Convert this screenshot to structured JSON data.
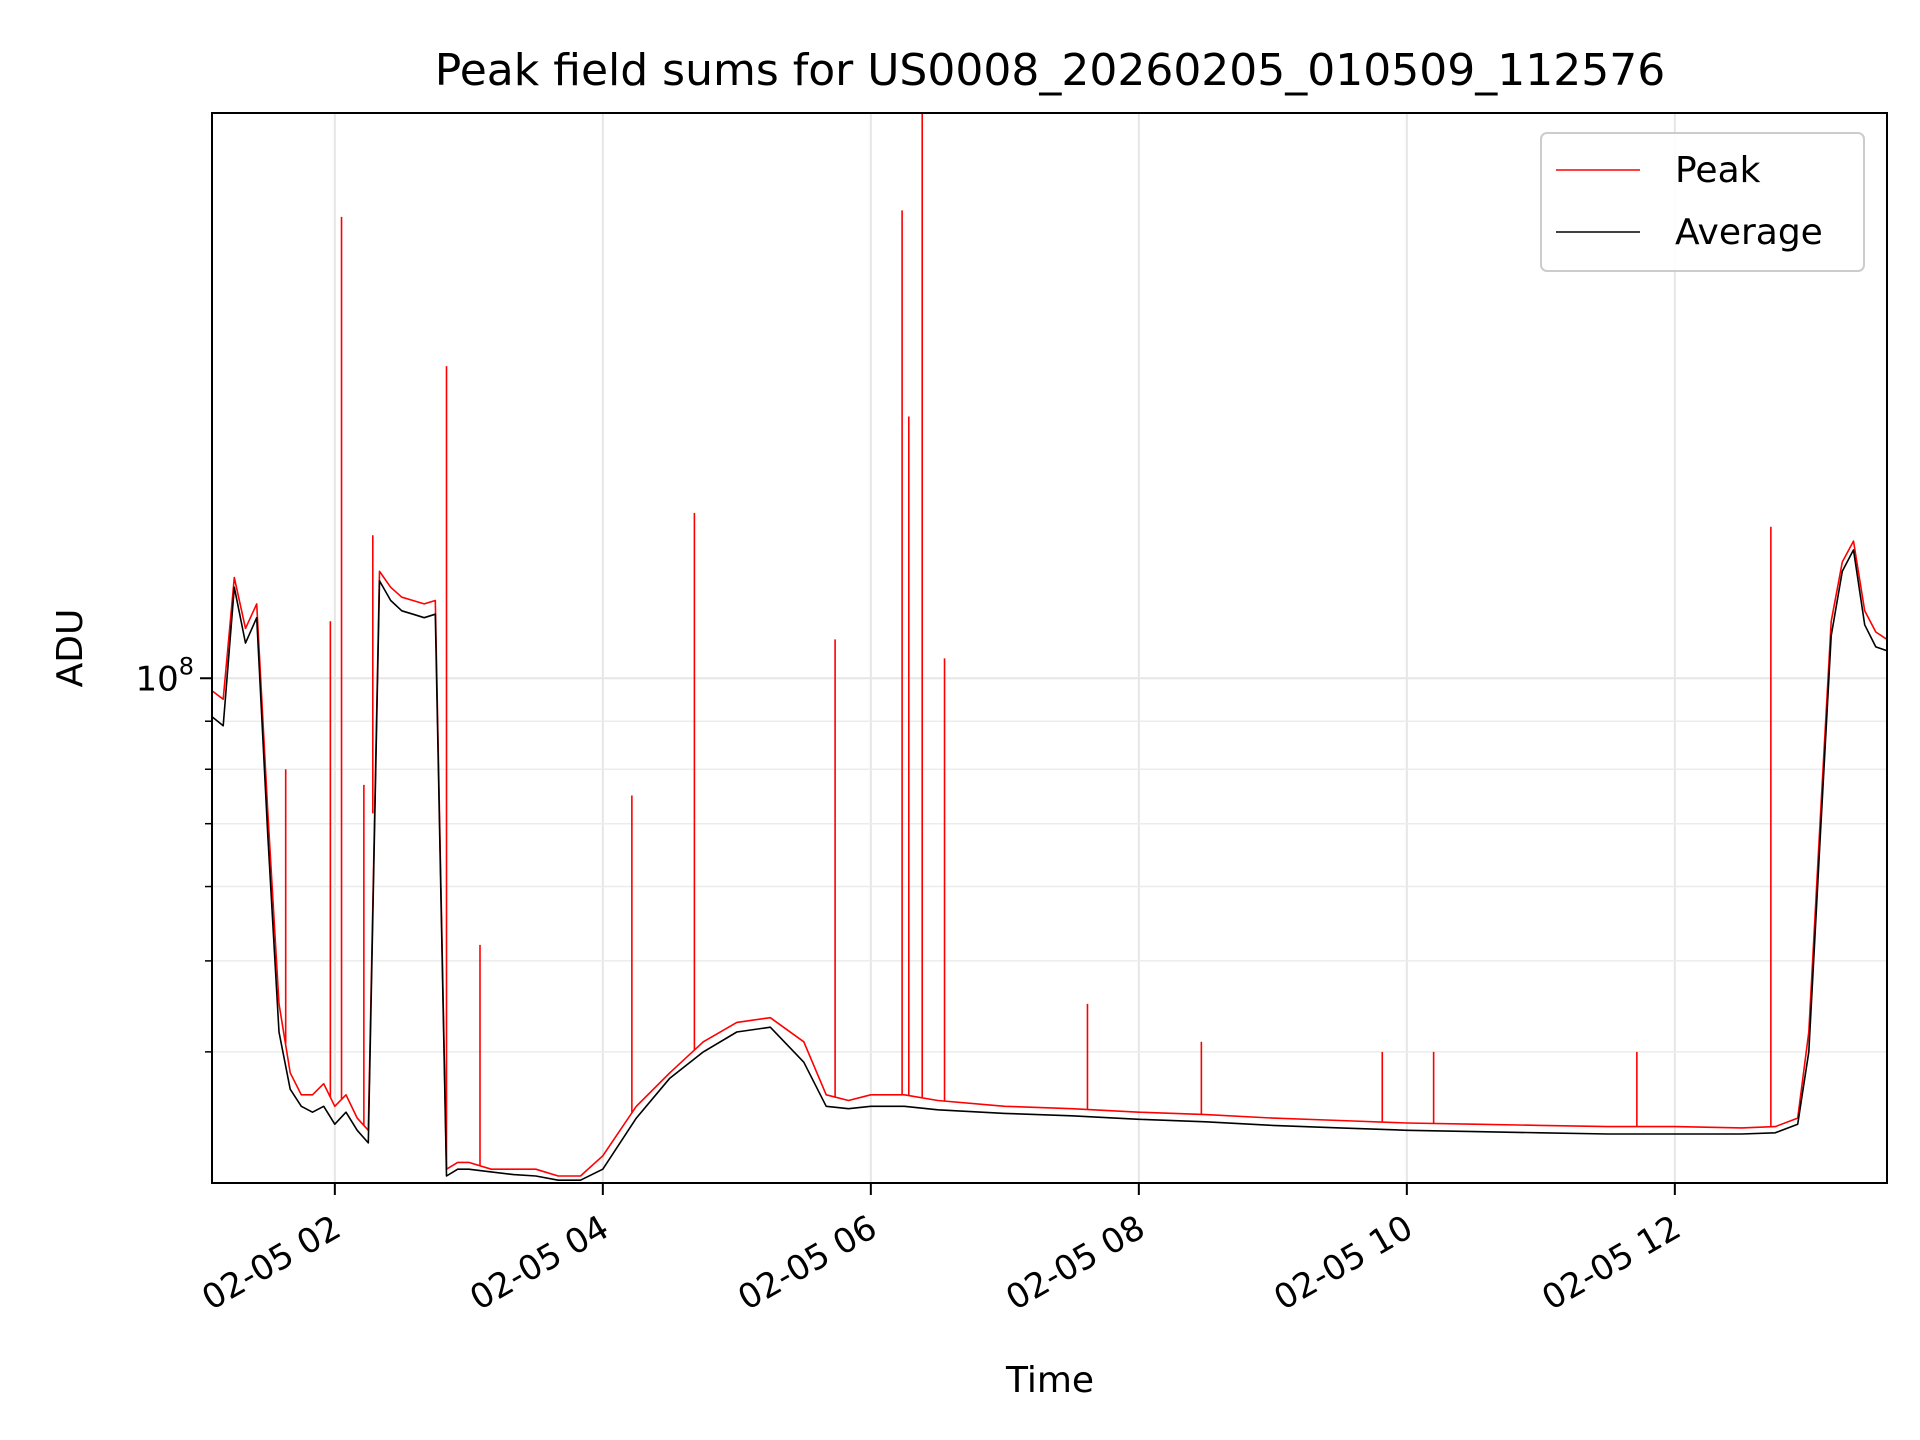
{
  "chart_data": {
    "type": "line",
    "title": "Peak field sums for US0008_20260205_010509_112576",
    "xlabel": "Time",
    "ylabel": "ADU",
    "y_scale": "log",
    "grid": true,
    "legend_position": "top-right",
    "xlim": [
      "2026-02-05 01:05",
      "2026-02-05 13:35"
    ],
    "ylim": [
      29000000,
      400000000
    ],
    "x_ticks": [
      "02-05 02",
      "02-05 04",
      "02-05 06",
      "02-05 08",
      "02-05 10",
      "02-05 12"
    ],
    "x_tick_values": [
      "2026-02-05 02:00",
      "2026-02-05 04:00",
      "2026-02-05 06:00",
      "2026-02-05 08:00",
      "2026-02-05 10:00",
      "2026-02-05 12:00"
    ],
    "y_major_tick_label": "10^8",
    "y_major_tick_value": 100000000,
    "y_minor_ticks": [
      40000000,
      50000000,
      60000000,
      70000000,
      80000000,
      90000000
    ],
    "colors": {
      "peak": "#ff0000",
      "average": "#000000"
    },
    "x": [
      "2026-02-05 01:05",
      "2026-02-05 01:10",
      "2026-02-05 01:15",
      "2026-02-05 01:20",
      "2026-02-05 01:25",
      "2026-02-05 01:30",
      "2026-02-05 01:35",
      "2026-02-05 01:40",
      "2026-02-05 01:45",
      "2026-02-05 01:50",
      "2026-02-05 01:55",
      "2026-02-05 02:00",
      "2026-02-05 02:05",
      "2026-02-05 02:10",
      "2026-02-05 02:15",
      "2026-02-05 02:20",
      "2026-02-05 02:25",
      "2026-02-05 02:30",
      "2026-02-05 02:35",
      "2026-02-05 02:40",
      "2026-02-05 02:45",
      "2026-02-05 02:50",
      "2026-02-05 02:55",
      "2026-02-05 03:00",
      "2026-02-05 03:10",
      "2026-02-05 03:20",
      "2026-02-05 03:30",
      "2026-02-05 03:40",
      "2026-02-05 03:50",
      "2026-02-05 04:00",
      "2026-02-05 04:15",
      "2026-02-05 04:30",
      "2026-02-05 04:45",
      "2026-02-05 05:00",
      "2026-02-05 05:15",
      "2026-02-05 05:30",
      "2026-02-05 05:40",
      "2026-02-05 05:50",
      "2026-02-05 06:00",
      "2026-02-05 06:15",
      "2026-02-05 06:30",
      "2026-02-05 07:00",
      "2026-02-05 07:30",
      "2026-02-05 08:00",
      "2026-02-05 08:30",
      "2026-02-05 09:00",
      "2026-02-05 09:30",
      "2026-02-05 10:00",
      "2026-02-05 10:30",
      "2026-02-05 11:00",
      "2026-02-05 11:30",
      "2026-02-05 12:00",
      "2026-02-05 12:30",
      "2026-02-05 12:45",
      "2026-02-05 12:55",
      "2026-02-05 13:00",
      "2026-02-05 13:05",
      "2026-02-05 13:10",
      "2026-02-05 13:15",
      "2026-02-05 13:20",
      "2026-02-05 13:25",
      "2026-02-05 13:30",
      "2026-02-05 13:35"
    ],
    "series": [
      {
        "name": "Peak",
        "values": [
          97000000,
          95000000,
          128000000,
          113000000,
          120000000,
          72000000,
          45000000,
          38000000,
          36000000,
          36000000,
          37000000,
          35000000,
          36000000,
          34000000,
          33000000,
          130000000,
          125000000,
          122000000,
          121000000,
          120000000,
          121000000,
          30000000,
          30500000,
          30500000,
          30000000,
          30000000,
          30000000,
          29500000,
          29500000,
          31000000,
          35000000,
          38000000,
          41000000,
          43000000,
          43500000,
          41000000,
          36000000,
          35500000,
          36000000,
          36000000,
          35500000,
          35000000,
          34800000,
          34500000,
          34300000,
          34000000,
          33800000,
          33600000,
          33500000,
          33400000,
          33300000,
          33300000,
          33200000,
          33300000,
          34000000,
          42000000,
          70000000,
          115000000,
          133000000,
          140000000,
          118000000,
          112000000,
          110000000
        ]
      },
      {
        "name": "Average",
        "values": [
          91000000,
          89000000,
          125000000,
          109000000,
          116000000,
          68000000,
          42000000,
          36500000,
          35000000,
          34500000,
          35000000,
          33500000,
          34500000,
          33000000,
          32000000,
          127000000,
          121000000,
          118000000,
          117000000,
          116000000,
          117000000,
          29500000,
          30000000,
          30000000,
          29800000,
          29600000,
          29500000,
          29200000,
          29200000,
          30000000,
          34000000,
          37500000,
          40000000,
          42000000,
          42500000,
          39000000,
          35000000,
          34800000,
          35000000,
          35000000,
          34700000,
          34400000,
          34200000,
          33900000,
          33700000,
          33400000,
          33200000,
          33000000,
          32900000,
          32800000,
          32700000,
          32700000,
          32700000,
          32800000,
          33500000,
          40000000,
          67000000,
          111000000,
          130000000,
          137000000,
          114000000,
          108000000,
          107000000
        ]
      }
    ],
    "peak_spikes": [
      {
        "x": "2026-02-05 01:38",
        "y": 80000000
      },
      {
        "x": "2026-02-05 01:58",
        "y": 115000000
      },
      {
        "x": "2026-02-05 02:03",
        "y": 310000000
      },
      {
        "x": "2026-02-05 02:13",
        "y": 77000000
      },
      {
        "x": "2026-02-05 02:17",
        "y": 142000000
      },
      {
        "x": "2026-02-05 02:50",
        "y": 215000000
      },
      {
        "x": "2026-02-05 03:05",
        "y": 52000000
      },
      {
        "x": "2026-02-05 04:13",
        "y": 75000000
      },
      {
        "x": "2026-02-05 04:41",
        "y": 150000000
      },
      {
        "x": "2026-02-05 05:44",
        "y": 110000000
      },
      {
        "x": "2026-02-05 06:14",
        "y": 315000000
      },
      {
        "x": "2026-02-05 06:17",
        "y": 190000000
      },
      {
        "x": "2026-02-05 06:23",
        "y": 400000000
      },
      {
        "x": "2026-02-05 06:33",
        "y": 105000000
      },
      {
        "x": "2026-02-05 07:37",
        "y": 45000000
      },
      {
        "x": "2026-02-05 08:28",
        "y": 41000000
      },
      {
        "x": "2026-02-05 09:49",
        "y": 40000000
      },
      {
        "x": "2026-02-05 10:12",
        "y": 40000000
      },
      {
        "x": "2026-02-05 11:43",
        "y": 40000000
      },
      {
        "x": "2026-02-05 12:43",
        "y": 145000000
      }
    ]
  }
}
